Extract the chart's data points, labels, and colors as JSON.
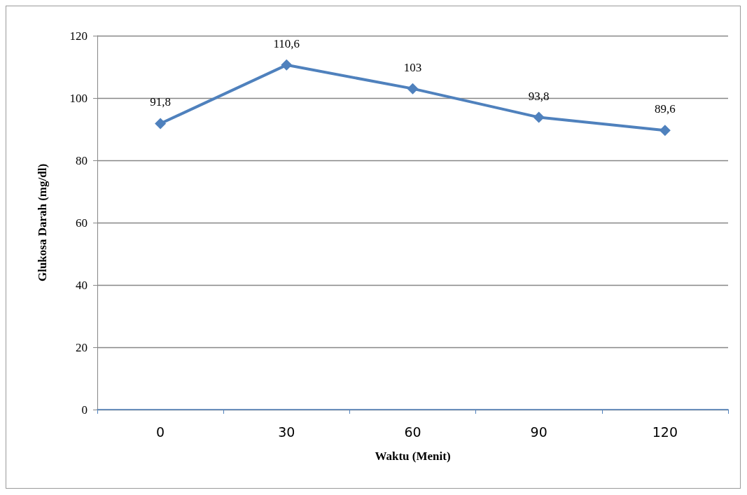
{
  "chart_data": {
    "type": "line",
    "xlabel": "Waktu (Menit)",
    "ylabel": "Glukosa Darah (mg/dl)",
    "categories": [
      "0",
      "30",
      "60",
      "90",
      "120"
    ],
    "series": [
      {
        "color": "#4f81bd",
        "values": [
          91.8,
          110.6,
          103,
          93.8,
          89.6
        ],
        "value_labels": [
          "91,8",
          "110,6",
          "103",
          "93,8",
          "89,6"
        ]
      }
    ],
    "ylim": [
      0,
      120
    ],
    "yticks": [
      0,
      20,
      40,
      60,
      80,
      100,
      120
    ],
    "grid": "y",
    "marker": "diamond",
    "line_style": "solid"
  }
}
